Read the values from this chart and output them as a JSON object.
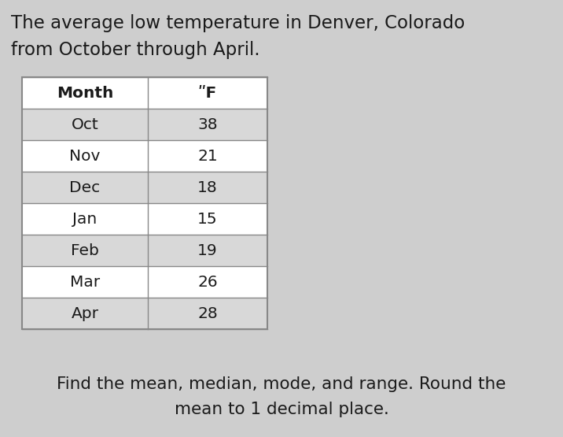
{
  "title_line1": "The average low temperature in Denver, Colorado",
  "title_line2": "from October through April.",
  "col_headers": [
    "Month",
    "ʺF"
  ],
  "months": [
    "Oct",
    "Nov",
    "Dec",
    "Jan",
    "Feb",
    "Mar",
    "Apr"
  ],
  "temps": [
    38,
    21,
    18,
    15,
    19,
    26,
    28
  ],
  "footer_line1": "Find the mean, median, mode, and range. Round the",
  "footer_line2": "mean to 1 decimal place.",
  "bg_color": "#cecece",
  "header_row_bg": "#ffffff",
  "data_row_odd_bg": "#d8d8d8",
  "data_row_even_bg": "#ffffff",
  "border_color": "#888888",
  "text_color": "#1a1a1a",
  "title_fontsize": 16.5,
  "table_fontsize": 14.5,
  "footer_fontsize": 15.5
}
